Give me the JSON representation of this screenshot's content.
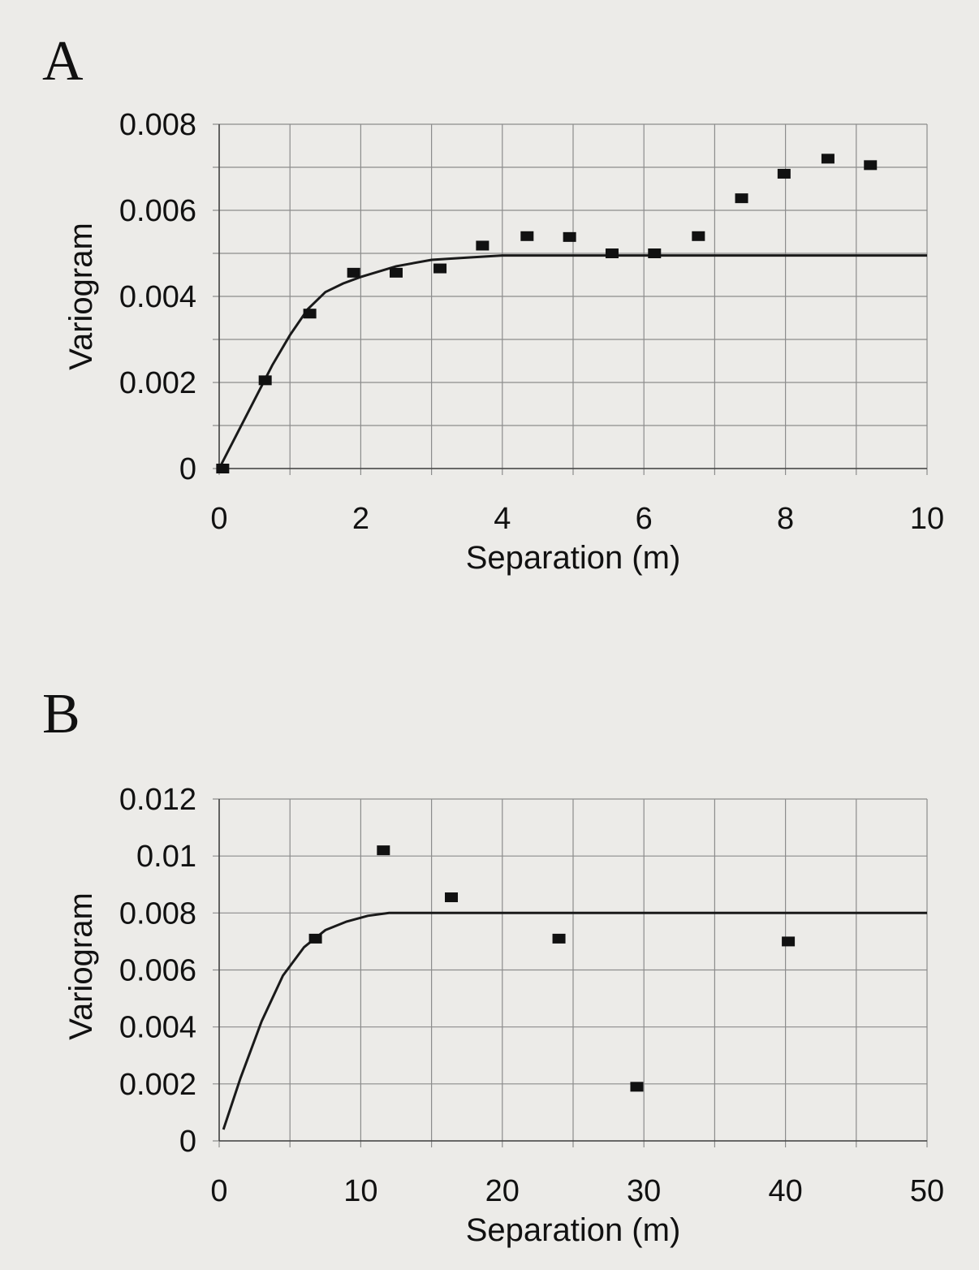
{
  "chart_data": [
    {
      "panel": "A",
      "type": "scatter",
      "xlabel": "Separation (m)",
      "ylabel": "Variogram",
      "xlim": [
        0,
        10
      ],
      "ylim": [
        0,
        0.008
      ],
      "xticks": [
        0,
        1,
        2,
        3,
        4,
        5,
        6,
        7,
        8,
        9,
        10
      ],
      "xtick_labels": [
        "0",
        "2",
        "4",
        "6",
        "8",
        "10"
      ],
      "xtick_label_values": [
        0,
        2,
        4,
        6,
        8,
        10
      ],
      "yticks": [
        0,
        0.001,
        0.002,
        0.003,
        0.004,
        0.005,
        0.006,
        0.007,
        0.008
      ],
      "ytick_labels": [
        "0",
        "0.002",
        "0.004",
        "0.006",
        "0.008"
      ],
      "ytick_label_values": [
        0,
        0.002,
        0.004,
        0.006,
        0.008
      ],
      "grid": true,
      "series": [
        {
          "kind": "points",
          "x": [
            0.05,
            0.65,
            1.28,
            1.9,
            2.5,
            3.12,
            3.72,
            4.35,
            4.95,
            5.55,
            6.15,
            6.77,
            7.38,
            7.98,
            8.6,
            9.2
          ],
          "y": [
            0.0,
            0.00205,
            0.0036,
            0.00455,
            0.00455,
            0.00465,
            0.00518,
            0.0054,
            0.00538,
            0.005,
            0.005,
            0.0054,
            0.00628,
            0.00685,
            0.0072,
            0.00705
          ]
        },
        {
          "kind": "fit-line",
          "x": [
            0.0,
            0.25,
            0.5,
            0.75,
            1.0,
            1.25,
            1.5,
            1.75,
            2.0,
            2.5,
            3.0,
            3.5,
            4.0,
            5.0,
            6.0,
            7.0,
            8.0,
            9.0,
            10.0
          ],
          "y": [
            0.0,
            0.0008,
            0.0016,
            0.0024,
            0.0031,
            0.0037,
            0.0041,
            0.0043,
            0.00445,
            0.0047,
            0.00485,
            0.0049,
            0.00495,
            0.00495,
            0.00495,
            0.00495,
            0.00495,
            0.00495,
            0.00495
          ]
        }
      ]
    },
    {
      "panel": "B",
      "type": "scatter",
      "xlabel": "Separation (m)",
      "ylabel": "Variogram",
      "xlim": [
        0,
        50
      ],
      "ylim": [
        0,
        0.012
      ],
      "xticks": [
        0,
        5,
        10,
        15,
        20,
        25,
        30,
        35,
        40,
        45,
        50
      ],
      "xtick_labels": [
        "0",
        "10",
        "20",
        "30",
        "40",
        "50"
      ],
      "xtick_label_values": [
        0,
        10,
        20,
        30,
        40,
        50
      ],
      "yticks": [
        0,
        0.002,
        0.004,
        0.006,
        0.008,
        0.01,
        0.012
      ],
      "ytick_labels": [
        "0",
        "0.002",
        "0.004",
        "0.006",
        "0.008",
        "0.01",
        "0.012"
      ],
      "ytick_label_values": [
        0,
        0.002,
        0.004,
        0.006,
        0.008,
        0.01,
        0.012
      ],
      "grid": true,
      "series": [
        {
          "kind": "points",
          "x": [
            6.8,
            11.6,
            16.4,
            24.0,
            29.5,
            40.2
          ],
          "y": [
            0.0071,
            0.0102,
            0.00855,
            0.0071,
            0.0019,
            0.007
          ]
        },
        {
          "kind": "fit-line",
          "x": [
            0.3,
            1.5,
            3.0,
            4.5,
            6.0,
            7.5,
            9.0,
            10.5,
            12.0,
            14.0,
            17.0,
            20.0,
            30.0,
            40.0,
            50.0
          ],
          "y": [
            0.0004,
            0.0022,
            0.0042,
            0.0058,
            0.0068,
            0.0074,
            0.0077,
            0.0079,
            0.008,
            0.008,
            0.008,
            0.008,
            0.008,
            0.008,
            0.008
          ]
        }
      ]
    }
  ]
}
